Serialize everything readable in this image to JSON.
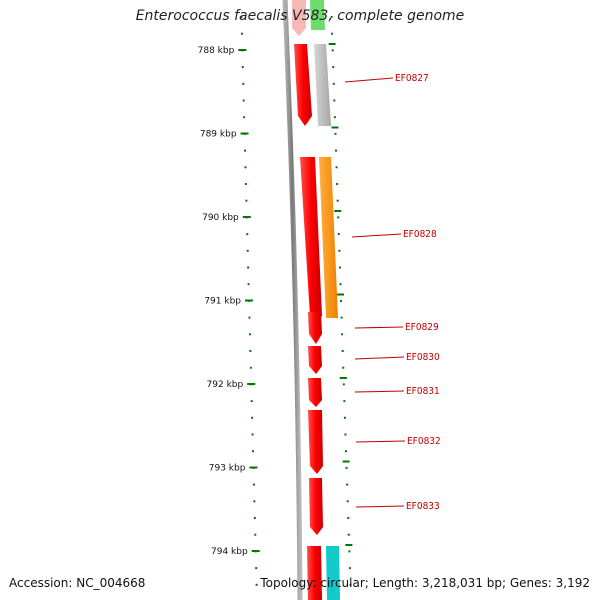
{
  "title": "Enterococcus faecalis V583, complete genome",
  "accession": "Accession: NC_004668",
  "topology": "Topology: circular; Length: 3,218,031 bp; Genes: 3,192",
  "scale_labels": [
    "788 kbp",
    "789 kbp",
    "790 kbp",
    "791 kbp",
    "792 kbp",
    "793 kbp",
    "794 kbp"
  ],
  "gene_labels": [
    "EF0827",
    "EF0828",
    "EF0829",
    "EF0830",
    "EF0831",
    "EF0832",
    "EF0833"
  ],
  "colors": {
    "backbone": "#8a8a8a",
    "gene_red": "#ff0000",
    "gene_red_light": "#f6b8b8",
    "label_red": "#c00000",
    "tick_green": "#007700",
    "gray_feature": "#b8b8b8",
    "orange_feature": "#ff9200",
    "green_feature": "#66dd66",
    "cyan_feature": "#00cccc"
  }
}
